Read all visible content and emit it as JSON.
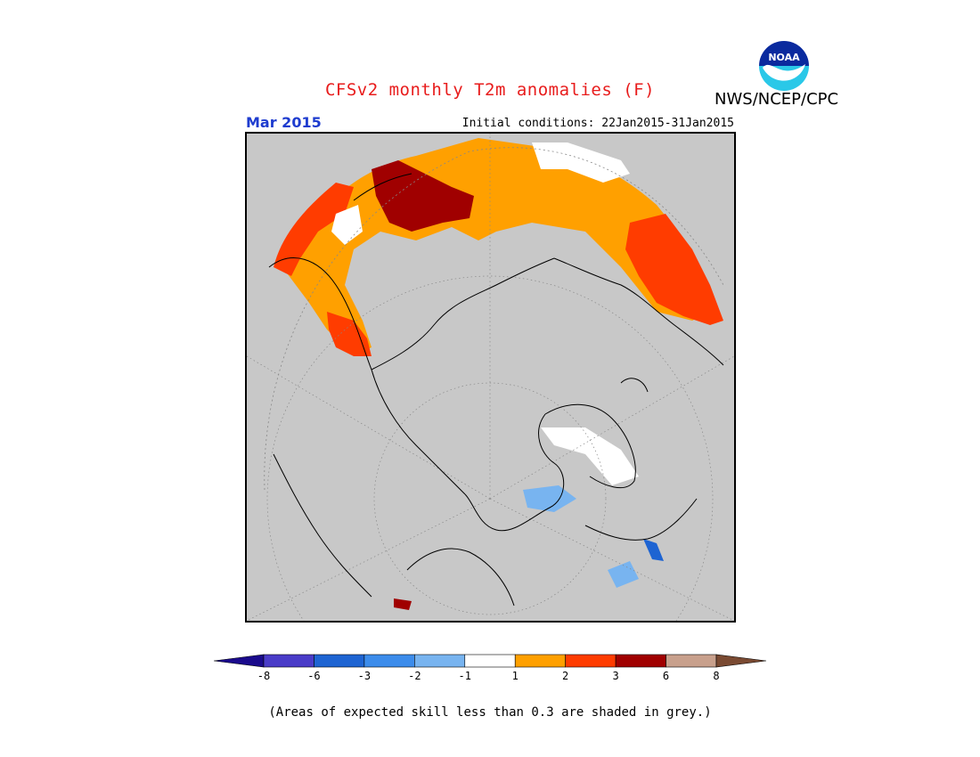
{
  "title": "CFSv2 monthly T2m anomalies (F)",
  "agency": "NWS/NCEP/CPC",
  "logo_text": "NOAA",
  "valid_month": "Mar 2015",
  "initial_conditions": "Initial conditions: 22Jan2015-31Jan2015",
  "footnote": "(Areas of expected skill less than 0.3 are shaded in grey.)",
  "map": {
    "projection": "north-polar-stereographic",
    "background_color": "#c8c8c8",
    "land_outline_color": "#000000"
  },
  "colorbar": {
    "bins": [
      {
        "color": "#1a0a8c"
      },
      {
        "color": "#4a3cc8"
      },
      {
        "color": "#1e64d2"
      },
      {
        "color": "#3c8ceb"
      },
      {
        "color": "#78b4f0"
      },
      {
        "color": "#ffffff"
      },
      {
        "color": "#ffa000"
      },
      {
        "color": "#ff3c00"
      },
      {
        "color": "#a00000"
      },
      {
        "color": "#c8a08c"
      },
      {
        "color": "#7a4a32"
      }
    ],
    "tick_labels": [
      "-8",
      "-6",
      "-3",
      "-2",
      "-1",
      "1",
      "2",
      "3",
      "6",
      "8"
    ]
  }
}
